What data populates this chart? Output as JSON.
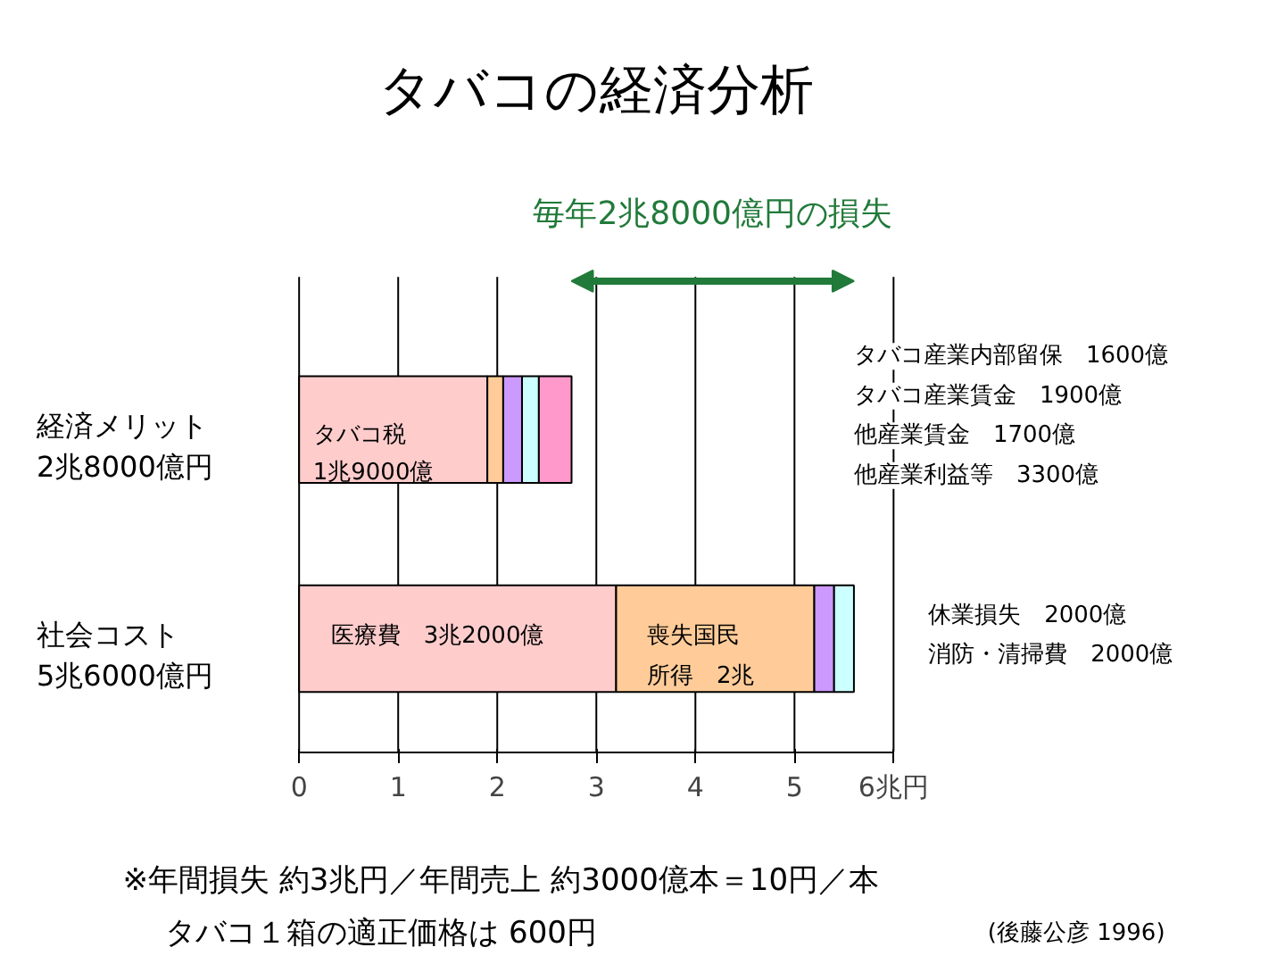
{
  "chart_data": {
    "type": "bar",
    "orientation": "horizontal",
    "stacked": true,
    "title": "タバコの経済分析",
    "categories": [
      "経済メリット\n2兆8000億円",
      "社会コスト\n5兆6000億円"
    ],
    "series": [
      {
        "color": "#ffcccc",
        "values": [
          1.9,
          3.2
        ]
      },
      {
        "color": "#ffcc99",
        "values": [
          0.16,
          2
        ]
      },
      {
        "color": "#cc99ff",
        "values": [
          0.19,
          0.2
        ]
      },
      {
        "color": "#ccffff",
        "values": [
          0.17,
          0.2
        ]
      },
      {
        "color": "#ff99cc",
        "values": [
          0.33,
          null
        ]
      }
    ],
    "xlim": [
      0,
      6
    ],
    "xticks": [
      0,
      1,
      2,
      3,
      4,
      5,
      {
        "value": 6,
        "label": "6兆円"
      }
    ],
    "grid": "x",
    "annotations": [
      "タバコ税",
      "1兆9000億",
      "医療費　3兆2000億",
      "喪失国民",
      "所得　2兆",
      "毎年2兆8000億円の損失",
      "タバコ産業内部留保　1600億",
      "タバコ産業賃金　1900億",
      "他産業賃金　1700億",
      "他産業利益等　3300億",
      "休業損失　2000億",
      "消防・清掃費　2000億",
      "※年間損失 約3兆円／年間売上 約3000億本＝10円／本",
      "タバコ１箱の適正価格は 600円",
      "(後藤公彦 1996)"
    ]
  }
}
